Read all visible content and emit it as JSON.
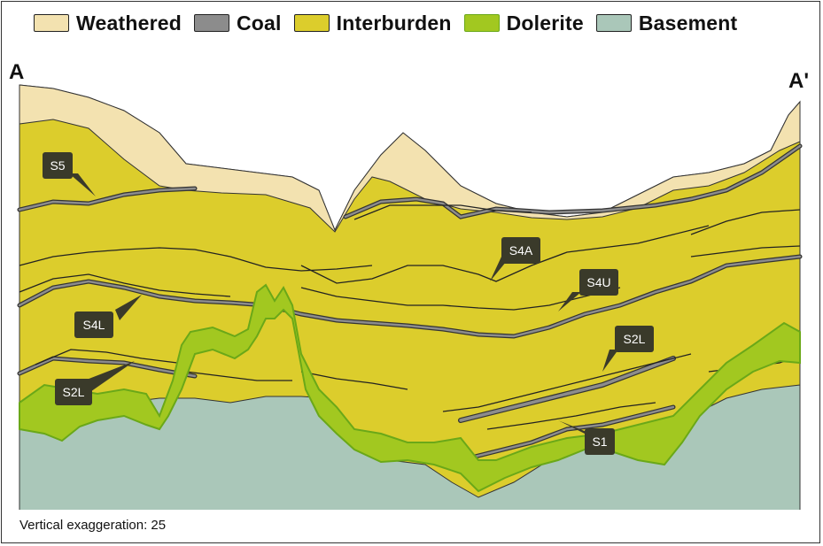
{
  "legend": {
    "items": [
      {
        "label": "Weathered",
        "color": "#f3e2b0"
      },
      {
        "label": "Coal",
        "color": "#8c8c8c"
      },
      {
        "label": "Interburden",
        "color": "#dccd2c"
      },
      {
        "label": "Dolerite",
        "color": "#a2c820"
      },
      {
        "label": "Basement",
        "color": "#aac7b9"
      }
    ]
  },
  "section": {
    "start_label": "A",
    "end_label": "A'",
    "seams": [
      {
        "label": "S5"
      },
      {
        "label": "S4A"
      },
      {
        "label": "S4U"
      },
      {
        "label": "S4L"
      },
      {
        "label": "S2L"
      },
      {
        "label": "S2L"
      },
      {
        "label": "S1"
      }
    ]
  },
  "caption": "Vertical exaggeration: 25",
  "colors": {
    "weathered": "#f3e2b0",
    "coal": "#8c8c8c",
    "interburden": "#dccd2c",
    "dolerite": "#a2c820",
    "dolerite_edge": "#6aa818",
    "basement": "#aac7b9",
    "tag": "#3a3a2a"
  }
}
